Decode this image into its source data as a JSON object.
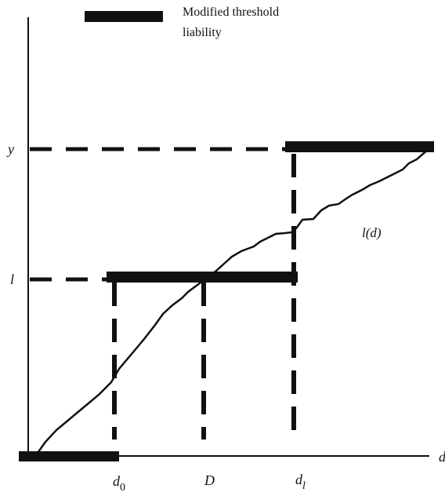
{
  "legend": {
    "text_line1": "Modified threshold",
    "text_line2": "liability"
  },
  "labels": {
    "y_tick_top": "y",
    "y_tick_mid": "l",
    "x_axis": "d",
    "d0_base": "d",
    "d0_sub": "0",
    "D": "D",
    "dl_base": "d",
    "dl_sub": "l",
    "curve": "l(d)"
  },
  "colors": {
    "ink": "#111111"
  }
}
